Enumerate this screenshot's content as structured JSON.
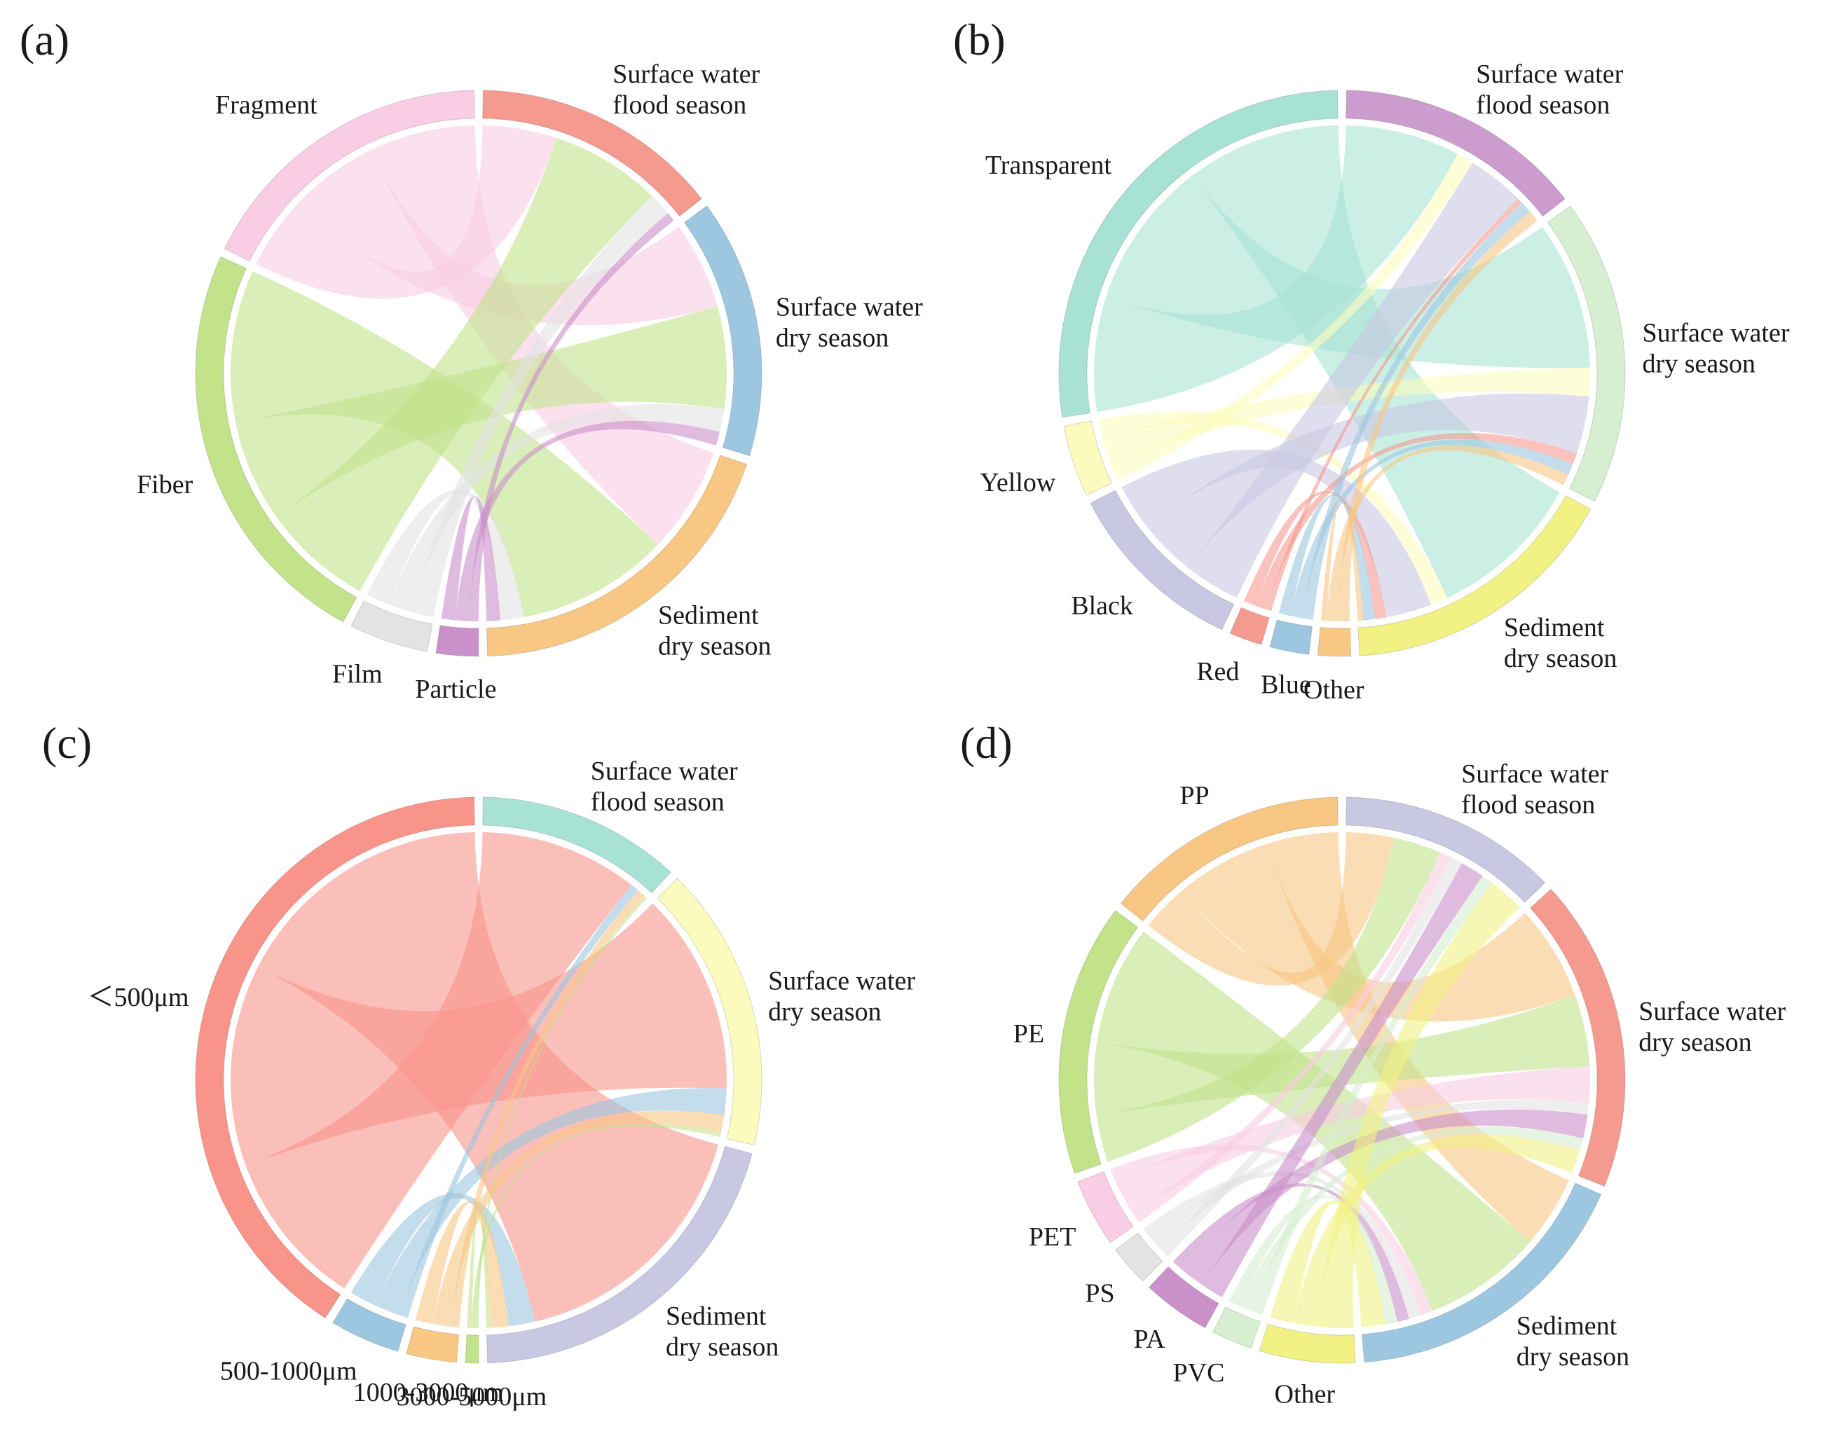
{
  "panels": [
    {
      "letter": "(a)",
      "chart_data": {
        "type": "chord",
        "categories": [
          {
            "label": "Fragment",
            "color": "#f9cde3"
          },
          {
            "label": "Fiber",
            "color": "#c2e38a"
          },
          {
            "label": "Film",
            "color": "#e3e3e3"
          },
          {
            "label": "Particle",
            "color": "#c990c9"
          }
        ],
        "groups": [
          {
            "label": "Surface water\nflood season",
            "color": "#f59a8f"
          },
          {
            "label": "Surface water\ndry season",
            "color": "#9dc7e0"
          },
          {
            "label": "Sediment\ndry season",
            "color": "#f8c784"
          }
        ],
        "matrix": [
          [
            16,
            19,
            23
          ],
          [
            24,
            22,
            33
          ],
          [
            5,
            5,
            5
          ],
          [
            2,
            3,
            3
          ]
        ]
      }
    },
    {
      "letter": "(b)",
      "chart_data": {
        "type": "chord",
        "categories": [
          {
            "label": "Transparent",
            "color": "#a8e2d4"
          },
          {
            "label": "Yellow",
            "color": "#fbfbbe"
          },
          {
            "label": "Black",
            "color": "#c8c8e2"
          },
          {
            "label": "Red",
            "color": "#f59a8f"
          },
          {
            "label": "Blue",
            "color": "#9dc7e0"
          },
          {
            "label": "Other",
            "color": "#f8c784"
          }
        ],
        "groups": [
          {
            "label": "Surface water\nflood season",
            "color": "#cc9ccf"
          },
          {
            "label": "Surface water\ndry season",
            "color": "#d6efd0"
          },
          {
            "label": "Sediment\ndry season",
            "color": "#f1f184"
          }
        ],
        "matrix": [
          [
            20,
            26,
            27
          ],
          [
            3,
            5,
            3
          ],
          [
            10,
            10,
            8
          ],
          [
            1,
            2,
            2
          ],
          [
            2,
            2,
            2
          ],
          [
            2,
            2,
            1
          ]
        ]
      }
    },
    {
      "letter": "(c)",
      "chart_data": {
        "type": "chord",
        "categories": [
          {
            "label": "＜500μm",
            "color": "#f8948a"
          },
          {
            "label": "500-1000μm",
            "color": "#9dc7e0"
          },
          {
            "label": "1000-3000μm",
            "color": "#f8c784"
          },
          {
            "label": "3000-5000μm",
            "color": "#c2e38a"
          }
        ],
        "groups": [
          {
            "label": "Surface water\nflood season",
            "color": "#a8e2d4"
          },
          {
            "label": "Surface water\ndry season",
            "color": "#fbfbbe"
          },
          {
            "label": "Sediment\ndry season",
            "color": "#c8c8e2"
          }
        ],
        "matrix": [
          [
            18,
            23,
            30
          ],
          [
            1,
            3,
            3
          ],
          [
            1,
            2,
            2
          ],
          [
            0.3,
            0.5,
            0.5
          ]
        ]
      }
    },
    {
      "letter": "(d)",
      "chart_data": {
        "type": "chord",
        "categories": [
          {
            "label": "PP",
            "color": "#f8c784"
          },
          {
            "label": "PE",
            "color": "#c2e38a"
          },
          {
            "label": "PET",
            "color": "#f9cde3"
          },
          {
            "label": "PS",
            "color": "#e3e3e3"
          },
          {
            "label": "PA",
            "color": "#c990c9"
          },
          {
            "label": "PVC",
            "color": "#d6efd0"
          },
          {
            "label": "Other",
            "color": "#f1f184"
          }
        ],
        "groups": [
          {
            "label": "Surface water\nflood season",
            "color": "#c8c8e2"
          },
          {
            "label": "Surface water\ndry season",
            "color": "#f59a8f"
          },
          {
            "label": "Sediment\ndry season",
            "color": "#9dc7e0"
          }
        ],
        "matrix": [
          [
            4,
            8,
            6
          ],
          [
            4,
            6,
            10
          ],
          [
            1,
            3,
            1
          ],
          [
            1,
            1,
            1
          ],
          [
            2,
            2,
            1
          ],
          [
            1,
            1,
            1
          ],
          [
            3,
            2,
            2
          ]
        ]
      }
    }
  ]
}
